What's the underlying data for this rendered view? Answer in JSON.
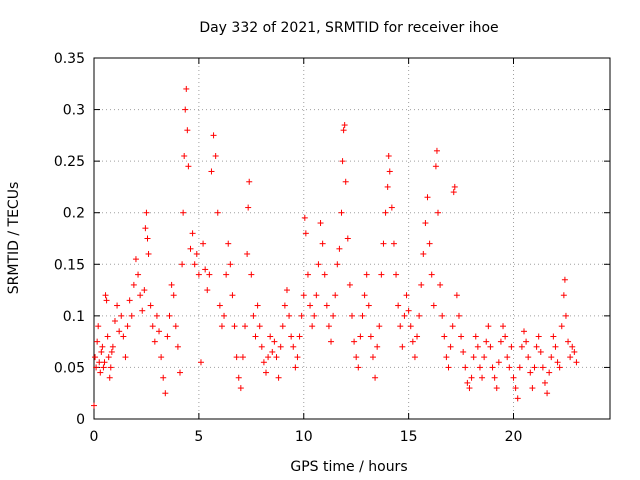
{
  "chart_data": {
    "type": "scatter",
    "title": "Day 332 of 2021, SRMTID for receiver ihoe",
    "xlabel": "GPS time / hours",
    "ylabel": "SRMTID / TECUs",
    "xlim": [
      0,
      24.6
    ],
    "ylim": [
      0,
      0.35
    ],
    "xticks": [
      0,
      5,
      10,
      15,
      20
    ],
    "xtick_labels": [
      "0",
      "5",
      "10",
      "15",
      "20"
    ],
    "yticks": [
      0,
      0.05,
      0.1,
      0.15,
      0.2,
      0.25,
      0.3,
      0.35
    ],
    "ytick_labels": [
      "0",
      "0.05",
      "0.1",
      "0.15",
      "0.2",
      "0.25",
      "0.3",
      "0.35"
    ],
    "grid": true,
    "marker": "+",
    "color": "#ff0000",
    "series": [
      {
        "name": "SRMTID",
        "points": [
          [
            0.0,
            0.013
          ],
          [
            0.05,
            0.06
          ],
          [
            0.1,
            0.05
          ],
          [
            0.15,
            0.075
          ],
          [
            0.2,
            0.09
          ],
          [
            0.25,
            0.055
          ],
          [
            0.3,
            0.045
          ],
          [
            0.35,
            0.065
          ],
          [
            0.4,
            0.07
          ],
          [
            0.45,
            0.05
          ],
          [
            0.5,
            0.055
          ],
          [
            0.55,
            0.12
          ],
          [
            0.6,
            0.115
          ],
          [
            0.65,
            0.08
          ],
          [
            0.7,
            0.06
          ],
          [
            0.75,
            0.04
          ],
          [
            0.8,
            0.05
          ],
          [
            0.85,
            0.065
          ],
          [
            0.9,
            0.07
          ],
          [
            1.0,
            0.095
          ],
          [
            1.1,
            0.11
          ],
          [
            1.2,
            0.085
          ],
          [
            1.3,
            0.1
          ],
          [
            1.4,
            0.08
          ],
          [
            1.5,
            0.06
          ],
          [
            1.6,
            0.09
          ],
          [
            1.7,
            0.115
          ],
          [
            1.8,
            0.1
          ],
          [
            1.9,
            0.13
          ],
          [
            2.0,
            0.155
          ],
          [
            2.1,
            0.14
          ],
          [
            2.2,
            0.12
          ],
          [
            2.3,
            0.105
          ],
          [
            2.4,
            0.125
          ],
          [
            2.45,
            0.185
          ],
          [
            2.5,
            0.2
          ],
          [
            2.55,
            0.175
          ],
          [
            2.6,
            0.16
          ],
          [
            2.7,
            0.11
          ],
          [
            2.8,
            0.09
          ],
          [
            2.9,
            0.075
          ],
          [
            3.0,
            0.1
          ],
          [
            3.1,
            0.085
          ],
          [
            3.2,
            0.06
          ],
          [
            3.3,
            0.04
          ],
          [
            3.4,
            0.025
          ],
          [
            3.5,
            0.08
          ],
          [
            3.6,
            0.1
          ],
          [
            3.7,
            0.13
          ],
          [
            3.8,
            0.12
          ],
          [
            3.9,
            0.09
          ],
          [
            4.0,
            0.07
          ],
          [
            4.1,
            0.045
          ],
          [
            4.2,
            0.15
          ],
          [
            4.25,
            0.2
          ],
          [
            4.3,
            0.255
          ],
          [
            4.35,
            0.3
          ],
          [
            4.4,
            0.32
          ],
          [
            4.45,
            0.28
          ],
          [
            4.5,
            0.245
          ],
          [
            4.6,
            0.165
          ],
          [
            4.7,
            0.18
          ],
          [
            4.8,
            0.15
          ],
          [
            4.9,
            0.16
          ],
          [
            5.0,
            0.14
          ],
          [
            5.1,
            0.055
          ],
          [
            5.2,
            0.17
          ],
          [
            5.3,
            0.145
          ],
          [
            5.4,
            0.125
          ],
          [
            5.5,
            0.14
          ],
          [
            5.6,
            0.24
          ],
          [
            5.7,
            0.275
          ],
          [
            5.8,
            0.255
          ],
          [
            5.9,
            0.2
          ],
          [
            6.0,
            0.11
          ],
          [
            6.1,
            0.09
          ],
          [
            6.2,
            0.1
          ],
          [
            6.3,
            0.14
          ],
          [
            6.4,
            0.17
          ],
          [
            6.5,
            0.15
          ],
          [
            6.6,
            0.12
          ],
          [
            6.7,
            0.09
          ],
          [
            6.8,
            0.06
          ],
          [
            6.9,
            0.04
          ],
          [
            7.0,
            0.03
          ],
          [
            7.1,
            0.06
          ],
          [
            7.2,
            0.09
          ],
          [
            7.3,
            0.16
          ],
          [
            7.35,
            0.205
          ],
          [
            7.4,
            0.23
          ],
          [
            7.5,
            0.14
          ],
          [
            7.6,
            0.1
          ],
          [
            7.7,
            0.08
          ],
          [
            7.8,
            0.11
          ],
          [
            7.9,
            0.09
          ],
          [
            8.0,
            0.07
          ],
          [
            8.1,
            0.055
          ],
          [
            8.2,
            0.045
          ],
          [
            8.3,
            0.06
          ],
          [
            8.4,
            0.08
          ],
          [
            8.5,
            0.065
          ],
          [
            8.6,
            0.075
          ],
          [
            8.7,
            0.06
          ],
          [
            8.8,
            0.04
          ],
          [
            8.9,
            0.07
          ],
          [
            9.0,
            0.09
          ],
          [
            9.1,
            0.11
          ],
          [
            9.2,
            0.125
          ],
          [
            9.3,
            0.1
          ],
          [
            9.4,
            0.08
          ],
          [
            9.5,
            0.07
          ],
          [
            9.6,
            0.05
          ],
          [
            9.7,
            0.06
          ],
          [
            9.8,
            0.08
          ],
          [
            9.9,
            0.1
          ],
          [
            10.0,
            0.12
          ],
          [
            10.05,
            0.195
          ],
          [
            10.1,
            0.18
          ],
          [
            10.2,
            0.14
          ],
          [
            10.3,
            0.11
          ],
          [
            10.4,
            0.09
          ],
          [
            10.5,
            0.1
          ],
          [
            10.6,
            0.12
          ],
          [
            10.7,
            0.15
          ],
          [
            10.8,
            0.19
          ],
          [
            10.9,
            0.17
          ],
          [
            11.0,
            0.14
          ],
          [
            11.1,
            0.11
          ],
          [
            11.2,
            0.09
          ],
          [
            11.3,
            0.075
          ],
          [
            11.4,
            0.1
          ],
          [
            11.5,
            0.12
          ],
          [
            11.6,
            0.15
          ],
          [
            11.7,
            0.165
          ],
          [
            11.8,
            0.2
          ],
          [
            11.85,
            0.25
          ],
          [
            11.9,
            0.28
          ],
          [
            11.95,
            0.285
          ],
          [
            12.0,
            0.23
          ],
          [
            12.1,
            0.175
          ],
          [
            12.2,
            0.13
          ],
          [
            12.3,
            0.1
          ],
          [
            12.4,
            0.075
          ],
          [
            12.5,
            0.06
          ],
          [
            12.6,
            0.05
          ],
          [
            12.7,
            0.08
          ],
          [
            12.8,
            0.1
          ],
          [
            12.9,
            0.12
          ],
          [
            13.0,
            0.14
          ],
          [
            13.1,
            0.11
          ],
          [
            13.2,
            0.08
          ],
          [
            13.3,
            0.06
          ],
          [
            13.4,
            0.04
          ],
          [
            13.5,
            0.07
          ],
          [
            13.6,
            0.09
          ],
          [
            13.7,
            0.14
          ],
          [
            13.8,
            0.17
          ],
          [
            13.9,
            0.2
          ],
          [
            14.0,
            0.225
          ],
          [
            14.05,
            0.255
          ],
          [
            14.1,
            0.24
          ],
          [
            14.2,
            0.205
          ],
          [
            14.3,
            0.17
          ],
          [
            14.4,
            0.14
          ],
          [
            14.5,
            0.11
          ],
          [
            14.6,
            0.09
          ],
          [
            14.7,
            0.07
          ],
          [
            14.8,
            0.1
          ],
          [
            14.9,
            0.12
          ],
          [
            15.0,
            0.105
          ],
          [
            15.1,
            0.09
          ],
          [
            15.2,
            0.075
          ],
          [
            15.3,
            0.06
          ],
          [
            15.4,
            0.08
          ],
          [
            15.5,
            0.1
          ],
          [
            15.6,
            0.13
          ],
          [
            15.7,
            0.16
          ],
          [
            15.8,
            0.19
          ],
          [
            15.9,
            0.215
          ],
          [
            16.0,
            0.17
          ],
          [
            16.1,
            0.14
          ],
          [
            16.2,
            0.11
          ],
          [
            16.3,
            0.245
          ],
          [
            16.35,
            0.26
          ],
          [
            16.4,
            0.2
          ],
          [
            16.5,
            0.13
          ],
          [
            16.6,
            0.1
          ],
          [
            16.7,
            0.08
          ],
          [
            16.8,
            0.06
          ],
          [
            16.9,
            0.05
          ],
          [
            17.0,
            0.07
          ],
          [
            17.1,
            0.09
          ],
          [
            17.15,
            0.22
          ],
          [
            17.2,
            0.225
          ],
          [
            17.3,
            0.12
          ],
          [
            17.4,
            0.1
          ],
          [
            17.5,
            0.08
          ],
          [
            17.6,
            0.065
          ],
          [
            17.7,
            0.05
          ],
          [
            17.8,
            0.035
          ],
          [
            17.9,
            0.03
          ],
          [
            18.0,
            0.04
          ],
          [
            18.1,
            0.06
          ],
          [
            18.2,
            0.08
          ],
          [
            18.3,
            0.07
          ],
          [
            18.4,
            0.05
          ],
          [
            18.5,
            0.04
          ],
          [
            18.6,
            0.06
          ],
          [
            18.7,
            0.075
          ],
          [
            18.8,
            0.09
          ],
          [
            18.9,
            0.07
          ],
          [
            19.0,
            0.05
          ],
          [
            19.1,
            0.04
          ],
          [
            19.2,
            0.03
          ],
          [
            19.3,
            0.055
          ],
          [
            19.4,
            0.075
          ],
          [
            19.5,
            0.09
          ],
          [
            19.6,
            0.08
          ],
          [
            19.7,
            0.06
          ],
          [
            19.8,
            0.05
          ],
          [
            19.9,
            0.07
          ],
          [
            20.0,
            0.04
          ],
          [
            20.1,
            0.03
          ],
          [
            20.2,
            0.02
          ],
          [
            20.3,
            0.05
          ],
          [
            20.4,
            0.07
          ],
          [
            20.5,
            0.085
          ],
          [
            20.6,
            0.075
          ],
          [
            20.7,
            0.06
          ],
          [
            20.8,
            0.045
          ],
          [
            20.9,
            0.03
          ],
          [
            21.0,
            0.05
          ],
          [
            21.1,
            0.07
          ],
          [
            21.2,
            0.08
          ],
          [
            21.3,
            0.065
          ],
          [
            21.4,
            0.05
          ],
          [
            21.5,
            0.035
          ],
          [
            21.6,
            0.025
          ],
          [
            21.7,
            0.045
          ],
          [
            21.8,
            0.06
          ],
          [
            21.9,
            0.08
          ],
          [
            22.0,
            0.07
          ],
          [
            22.1,
            0.055
          ],
          [
            22.2,
            0.05
          ],
          [
            22.3,
            0.09
          ],
          [
            22.4,
            0.12
          ],
          [
            22.45,
            0.135
          ],
          [
            22.5,
            0.1
          ],
          [
            22.6,
            0.075
          ],
          [
            22.7,
            0.06
          ],
          [
            22.8,
            0.07
          ],
          [
            22.9,
            0.065
          ],
          [
            23.0,
            0.055
          ]
        ]
      }
    ]
  }
}
